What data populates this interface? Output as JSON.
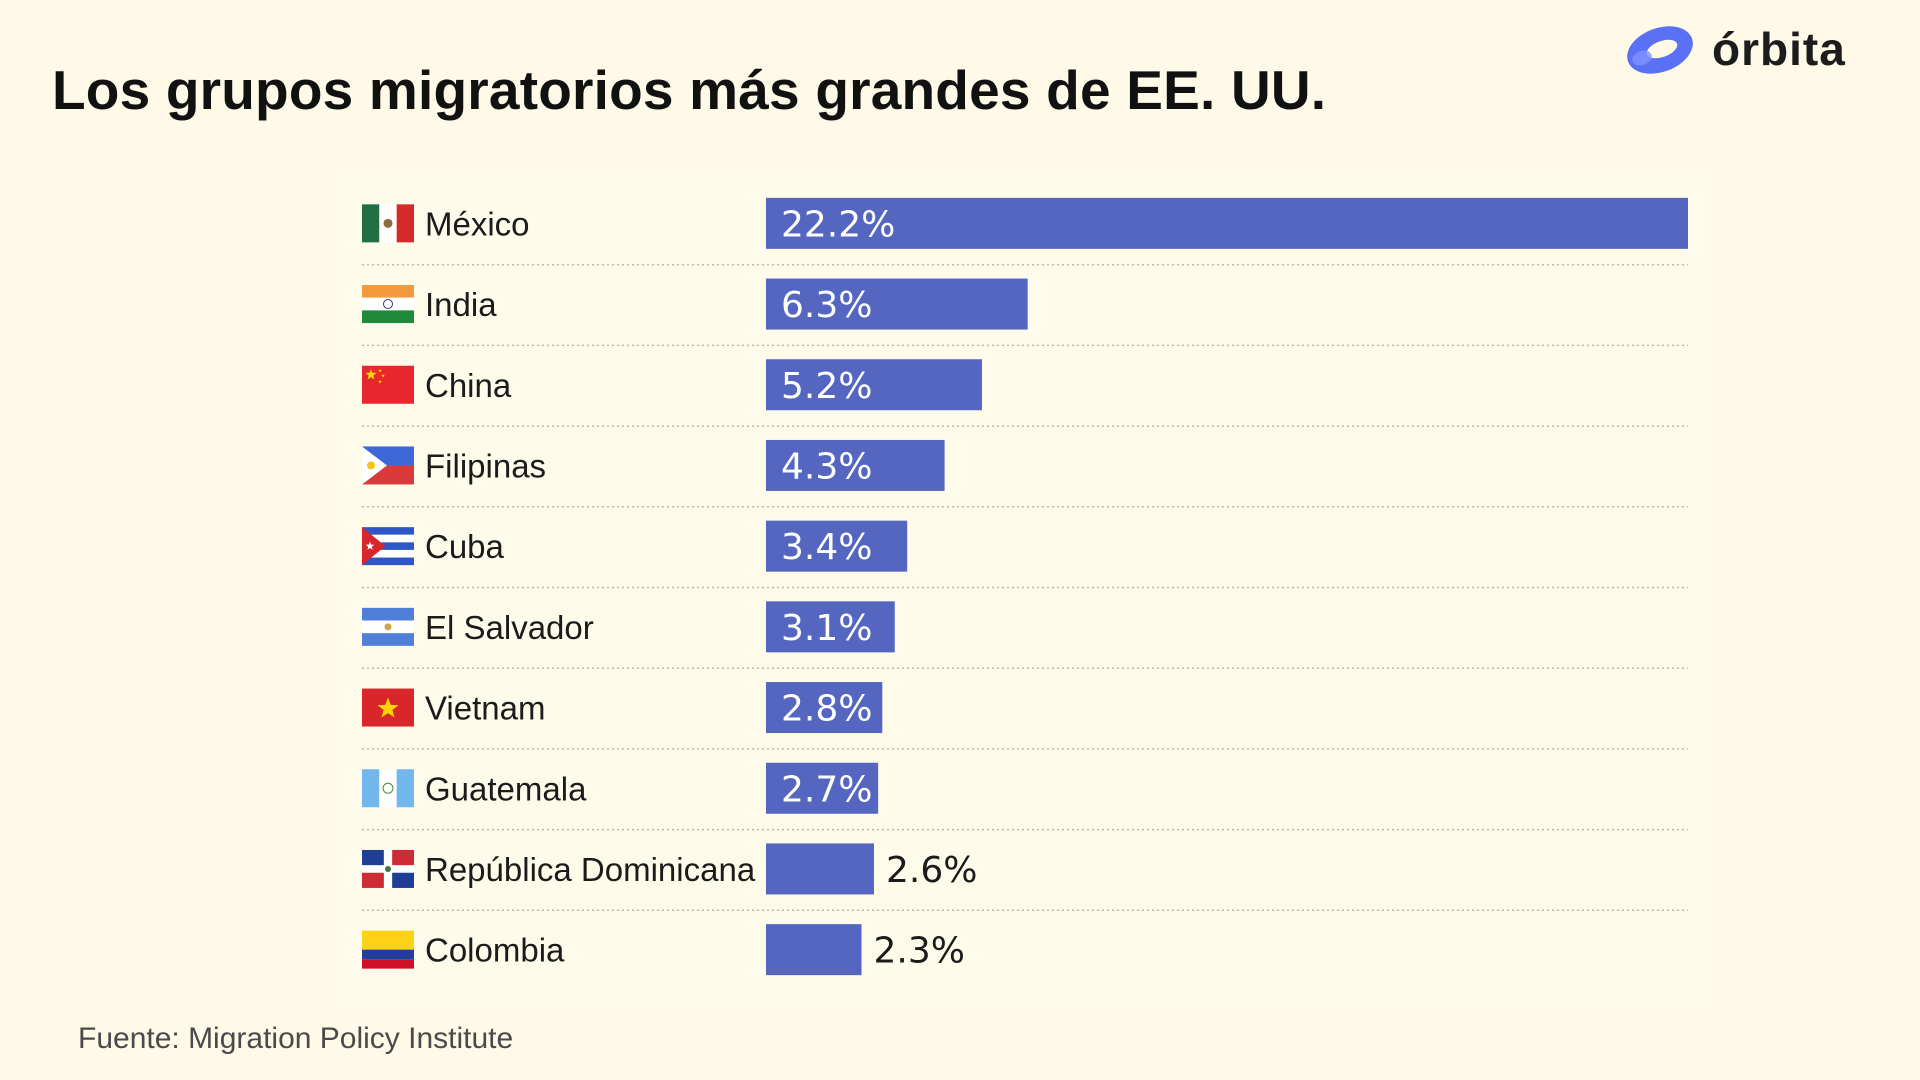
{
  "header": {
    "title": "Los grupos migratorios más grandes de EE. UU."
  },
  "brand": {
    "name": "órbita",
    "logo_icon": "orbit-ring-icon",
    "logo_color": "#5a71f5"
  },
  "footer": {
    "source": "Fuente: Migration Policy Institute"
  },
  "colors": {
    "background": "#fefae7",
    "bar": "#5466bf",
    "bar_label_inside": "#ffffff",
    "bar_label_outside": "#1b1b1b"
  },
  "chart_data": {
    "type": "bar",
    "orientation": "horizontal",
    "title": "Los grupos migratorios más grandes de EE. UU.",
    "xlabel": "",
    "ylabel": "",
    "unit": "%",
    "grid": false,
    "xlim": [
      0,
      22.2
    ],
    "categories": [
      "México",
      "India",
      "China",
      "Filipinas",
      "Cuba",
      "El Salvador",
      "Vietnam",
      "Guatemala",
      "República Dominicana",
      "Colombia"
    ],
    "values": [
      22.2,
      6.3,
      5.2,
      4.3,
      3.4,
      3.1,
      2.8,
      2.7,
      2.6,
      2.3
    ],
    "value_labels": [
      "22.2%",
      "6.3%",
      "5.2%",
      "4.3%",
      "3.4%",
      "3.1%",
      "2.8%",
      "2.7%",
      "2.6%",
      "2.3%"
    ],
    "flags": [
      "mexico-flag-icon",
      "india-flag-icon",
      "china-flag-icon",
      "philippines-flag-icon",
      "cuba-flag-icon",
      "el-salvador-flag-icon",
      "vietnam-flag-icon",
      "guatemala-flag-icon",
      "dominican-republic-flag-icon",
      "colombia-flag-icon"
    ]
  }
}
